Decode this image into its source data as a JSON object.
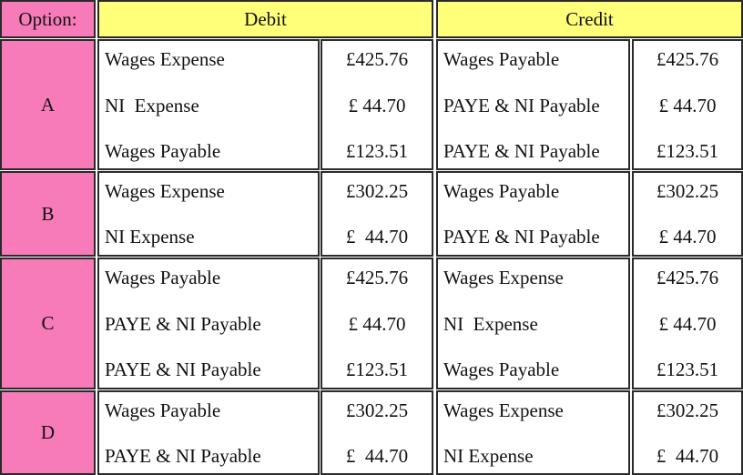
{
  "header": {
    "option": "Option:",
    "debit": "Debit",
    "credit": "Credit"
  },
  "colors": {
    "option_bg": "#f77bb9",
    "header_bg": "#ffff7a",
    "cell_bg": "#ffffff"
  },
  "options": [
    {
      "label": "A",
      "debit": [
        [
          "Wages Expense",
          "£425.76"
        ],
        [
          "NI  Expense",
          "£ 44.70"
        ],
        [
          "Wages Payable",
          "£123.51"
        ]
      ],
      "credit": [
        [
          "Wages Payable",
          "£425.76"
        ],
        [
          "PAYE & NI Payable",
          "£ 44.70"
        ],
        [
          "PAYE & NI Payable",
          "£123.51"
        ]
      ]
    },
    {
      "label": "B",
      "debit": [
        [
          "Wages Expense",
          "£302.25"
        ],
        [
          "NI Expense",
          "£  44.70"
        ]
      ],
      "credit": [
        [
          "Wages Payable",
          "£302.25"
        ],
        [
          "PAYE & NI Payable",
          "£ 44.70"
        ]
      ]
    },
    {
      "label": "C",
      "debit": [
        [
          "Wages Payable",
          "£425.76"
        ],
        [
          "PAYE & NI Payable",
          "£ 44.70"
        ],
        [
          "PAYE & NI Payable",
          "£123.51"
        ]
      ],
      "credit": [
        [
          "Wages Expense",
          "£425.76"
        ],
        [
          "NI  Expense",
          "£ 44.70"
        ],
        [
          "Wages Payable",
          "£123.51"
        ]
      ]
    },
    {
      "label": "D",
      "debit": [
        [
          "Wages Payable",
          "£302.25"
        ],
        [
          "PAYE & NI Payable",
          "£  44.70"
        ]
      ],
      "credit": [
        [
          "Wages Expense",
          "£302.25"
        ],
        [
          "NI Expense",
          "£  44.70"
        ]
      ]
    }
  ]
}
